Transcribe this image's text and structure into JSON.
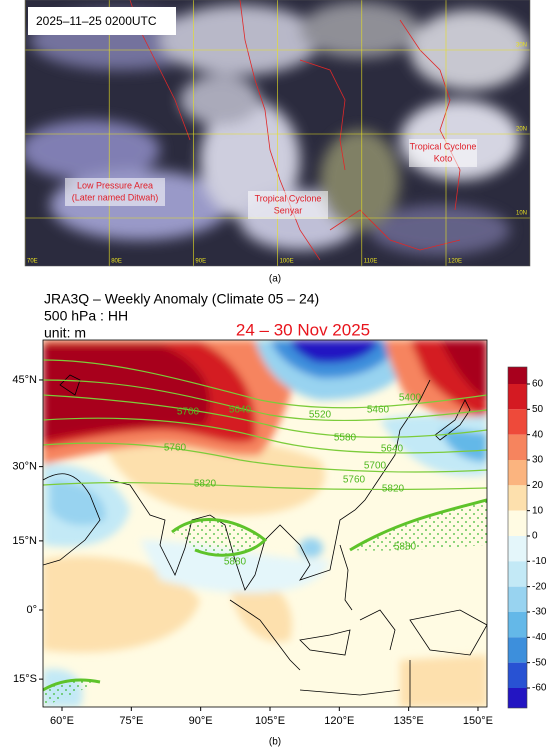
{
  "panel_a": {
    "caption": "(a)",
    "timestamp": "2025–11–25 0200UTC",
    "annotations": [
      {
        "lines": [
          "Low Pressure Area",
          "(Later named Ditwah)"
        ]
      },
      {
        "lines": [
          "Tropical Cyclone",
          "Senyar"
        ]
      },
      {
        "lines": [
          "Tropical Cyclone",
          "Koto"
        ]
      }
    ],
    "lon_ticks": [
      {
        "value": 70,
        "label": "70E"
      },
      {
        "value": 80,
        "label": "80E"
      },
      {
        "value": 90,
        "label": "90E"
      },
      {
        "value": 100,
        "label": "100E"
      },
      {
        "value": 110,
        "label": "110E"
      },
      {
        "value": 120,
        "label": "120E"
      },
      {
        "value": 130,
        "label": "130E"
      }
    ],
    "lat_ticks": [
      {
        "value": 30,
        "label": "30N"
      },
      {
        "value": 20,
        "label": "20N"
      },
      {
        "value": 10,
        "label": "10N"
      }
    ]
  },
  "panel_b": {
    "caption": "(b)",
    "title_lines": [
      "JRA3Q – Weekly Anomaly (Climate 05 – 24)",
      "500 hPa : HH",
      "unit: m"
    ],
    "period": "24 – 30 Nov 2025",
    "lat_ticks": [
      {
        "value": 45,
        "label": "45°N"
      },
      {
        "value": 30,
        "label": "30°N"
      },
      {
        "value": 15,
        "label": "15°N"
      },
      {
        "value": 0,
        "label": "0°"
      },
      {
        "value": -15,
        "label": "15°S"
      }
    ],
    "lon_ticks": [
      {
        "value": 60,
        "label": "60°E"
      },
      {
        "value": 75,
        "label": "75°E"
      },
      {
        "value": 90,
        "label": "90°E"
      },
      {
        "value": 105,
        "label": "105°E"
      },
      {
        "value": 120,
        "label": "120°E"
      },
      {
        "value": 135,
        "label": "135°E"
      },
      {
        "value": 150,
        "label": "150°E"
      }
    ],
    "contour_labels": [
      5700,
      5640,
      5520,
      5460,
      5400,
      5580,
      5640,
      5700,
      5760,
      5760,
      5820,
      5820,
      5880,
      5880
    ],
    "colorbar": {
      "levels": [
        60,
        50,
        40,
        30,
        20,
        10,
        0,
        -10,
        -20,
        -30,
        -40,
        -50,
        -60
      ],
      "colors": [
        "#a8001d",
        "#d41a22",
        "#ee4a3a",
        "#f6845e",
        "#fbb47f",
        "#fde0ad",
        "#fffbe3",
        "#e4f6fa",
        "#c3e9f6",
        "#98d3f0",
        "#64b8e8",
        "#3d8fdc",
        "#2852d3",
        "#2315c2"
      ]
    }
  }
}
